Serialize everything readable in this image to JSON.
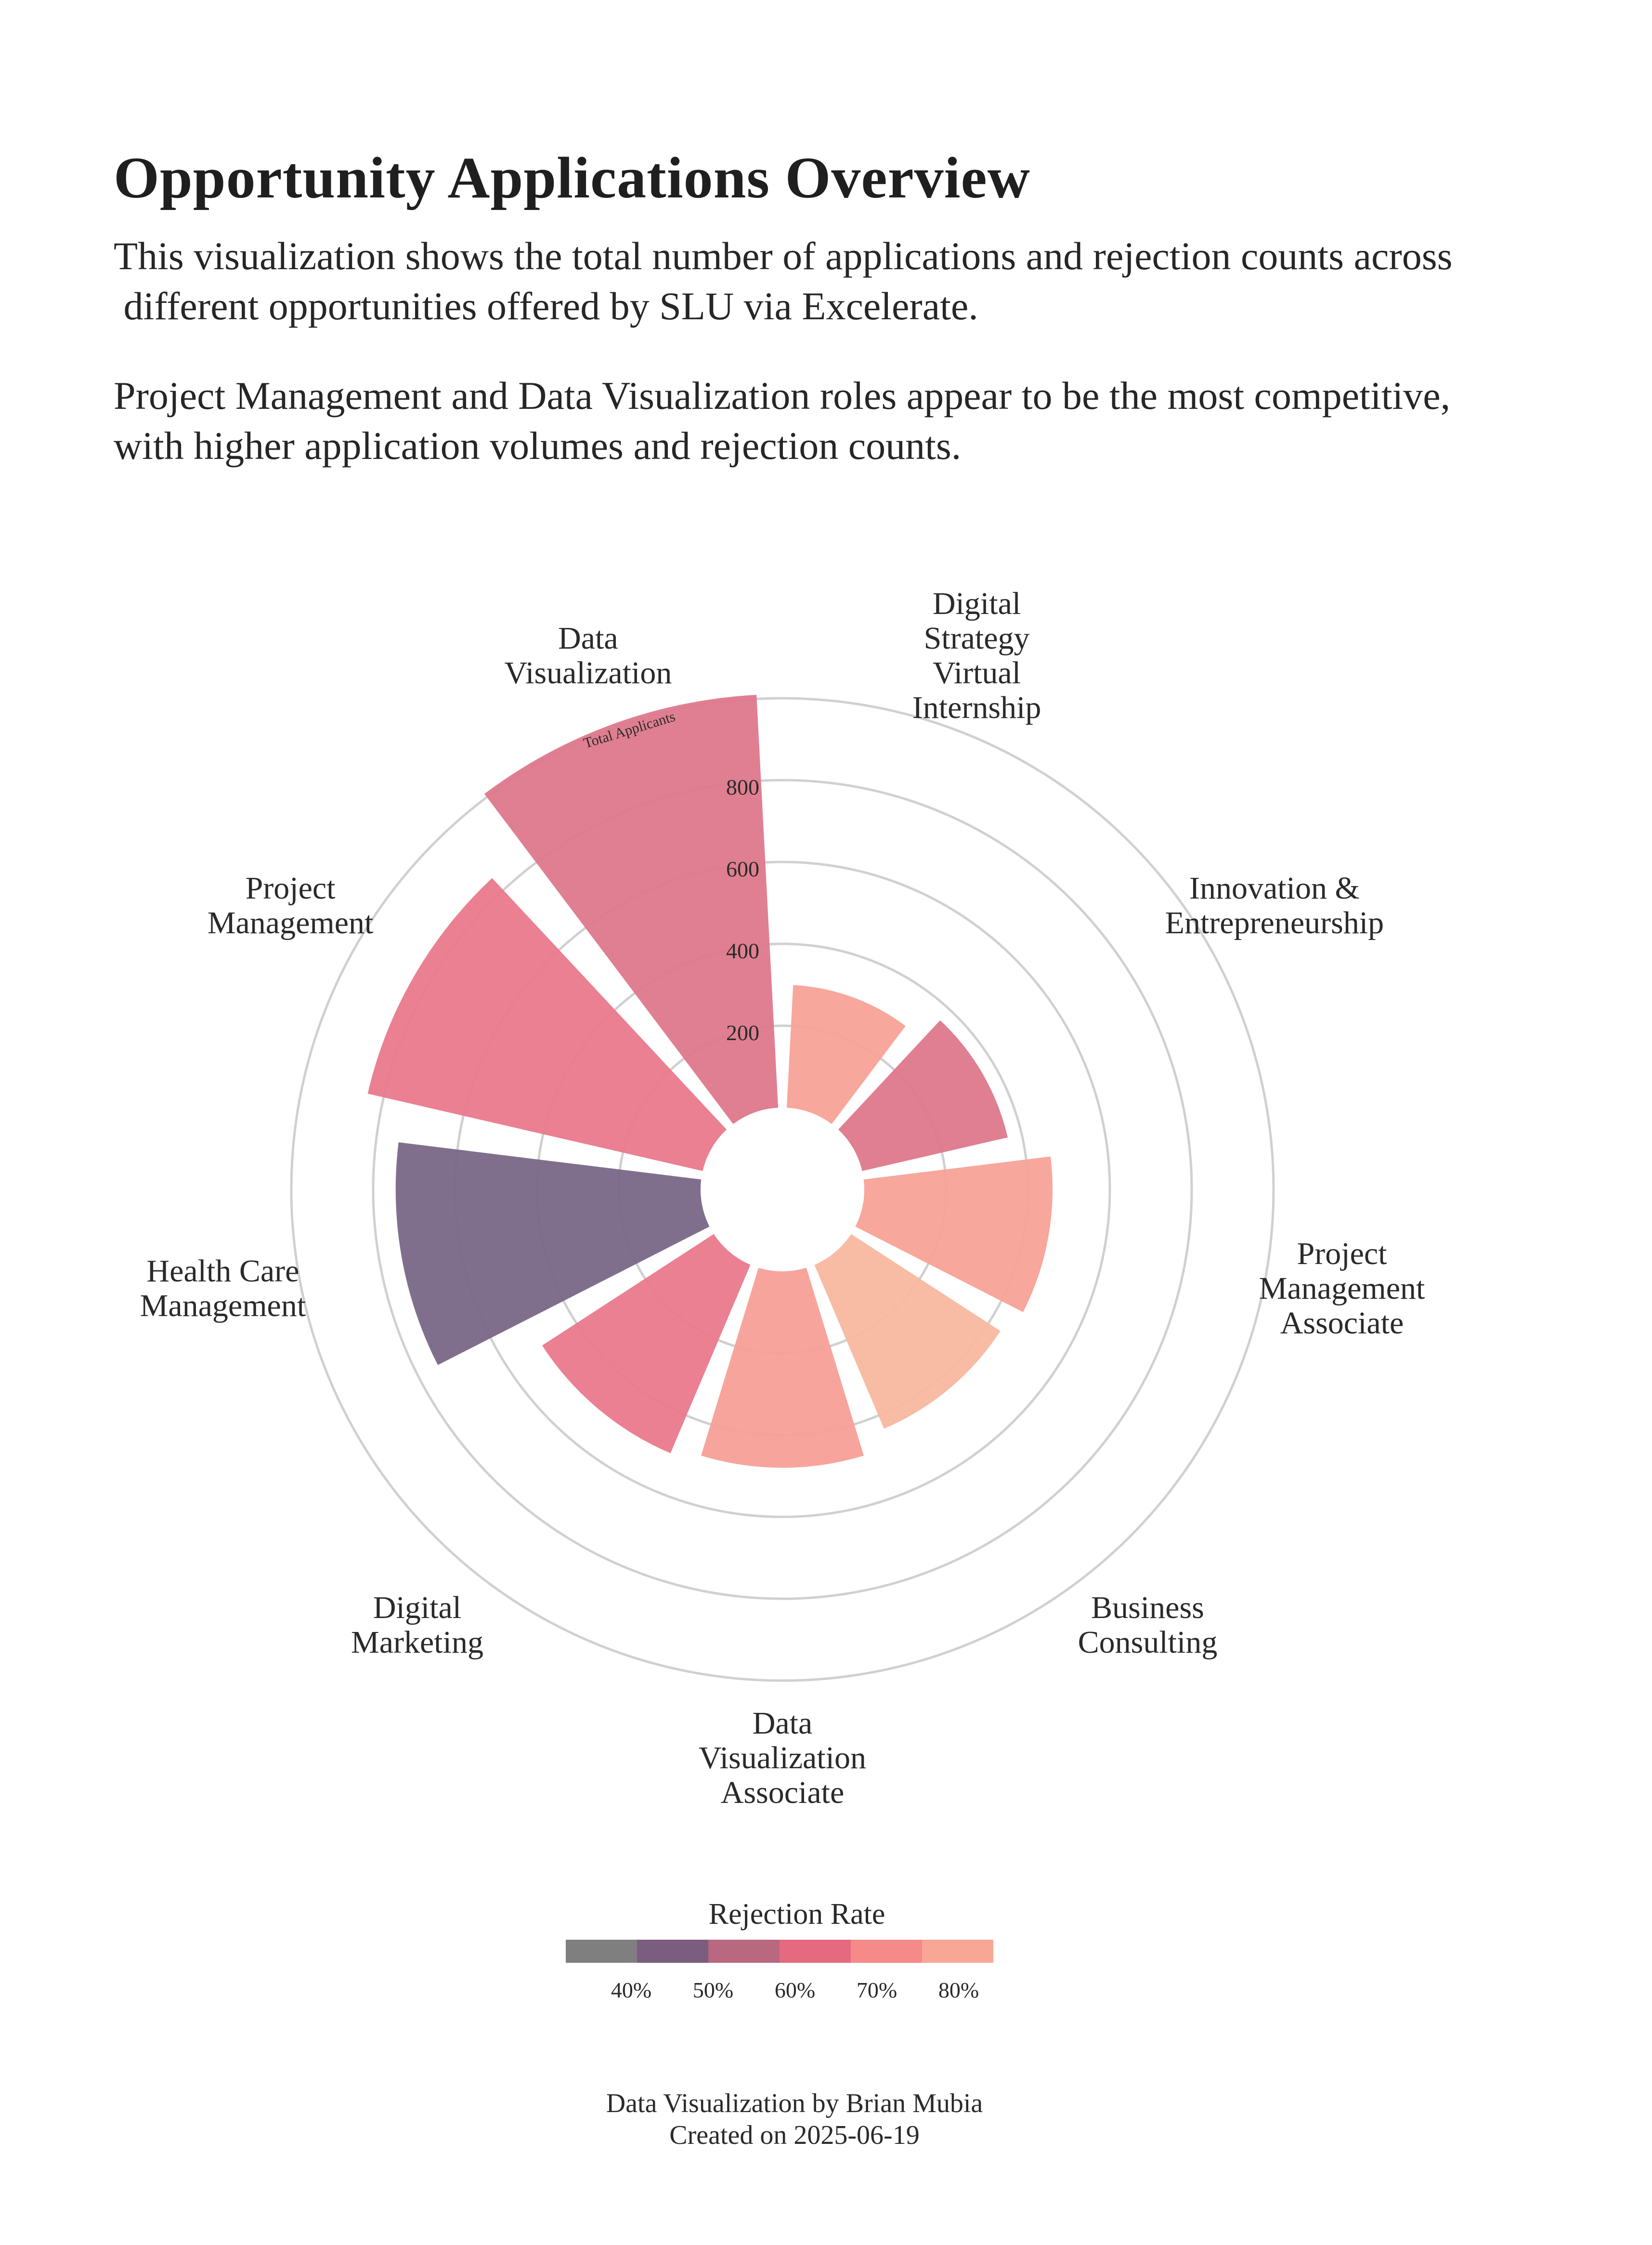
{
  "title": "Opportunity Applications Overview",
  "subtitle_lines": [
    "This visualization shows the total number of applications and rejection counts across",
    " different opportunities offered by SLU via Excelerate."
  ],
  "insight_lines": [
    "Project Management and Data Visualization roles appear to be the most competitive,",
    "with higher application volumes and rejection counts."
  ],
  "chart_data": {
    "type": "polar-bar",
    "radial_axis_title": "Total Applicants",
    "radial_ticks": [
      200,
      400,
      600,
      800
    ],
    "radial_range": [
      -200,
      1000
    ],
    "color_metric": "Rejection Rate",
    "categories": [
      {
        "label_lines": [
          "Digital",
          "Strategy",
          "Virtual",
          "Internship"
        ],
        "value": 300,
        "rejection_rate": 76,
        "color": "#f7a398"
      },
      {
        "label_lines": [
          "Innovation &",
          "Entrepreneurship"
        ],
        "value": 365,
        "rejection_rate": 62,
        "color": "#df7a8c"
      },
      {
        "label_lines": [
          "Project",
          "Management",
          "Associate"
        ],
        "value": 460,
        "rejection_rate": 76,
        "color": "#f7a398"
      },
      {
        "label_lines": [
          "Business",
          "Consulting"
        ],
        "value": 435,
        "rejection_rate": 83,
        "color": "#f8b8a0"
      },
      {
        "label_lines": [
          "Data",
          "Visualization",
          "Associate"
        ],
        "value": 480,
        "rejection_rate": 75,
        "color": "#f7a198"
      },
      {
        "label_lines": [
          "Digital",
          "Marketing"
        ],
        "value": 500,
        "rejection_rate": 66,
        "color": "#e97b8c"
      },
      {
        "label_lines": [
          "Health Care",
          "Management"
        ],
        "value": 745,
        "rejection_rate": 50,
        "color": "#7b6987"
      },
      {
        "label_lines": [
          "Project",
          "Management"
        ],
        "value": 840,
        "rejection_rate": 66,
        "color": "#e97b8c"
      },
      {
        "label_lines": [
          "Data",
          "Visualization"
        ],
        "value": 1010,
        "rejection_rate": 62,
        "color": "#df7a8c"
      }
    ],
    "legend": {
      "title": "Rejection Rate",
      "colors": [
        "#7f7f7f",
        "#7b5d7f",
        "#b8687f",
        "#e56a80",
        "#f58a88",
        "#f8a696"
      ],
      "ticks": [
        "40%",
        "50%",
        "60%",
        "70%",
        "80%"
      ]
    }
  },
  "credit_lines": [
    "Data Visualization by Brian Mubia",
    "Created on 2025-06-19"
  ]
}
